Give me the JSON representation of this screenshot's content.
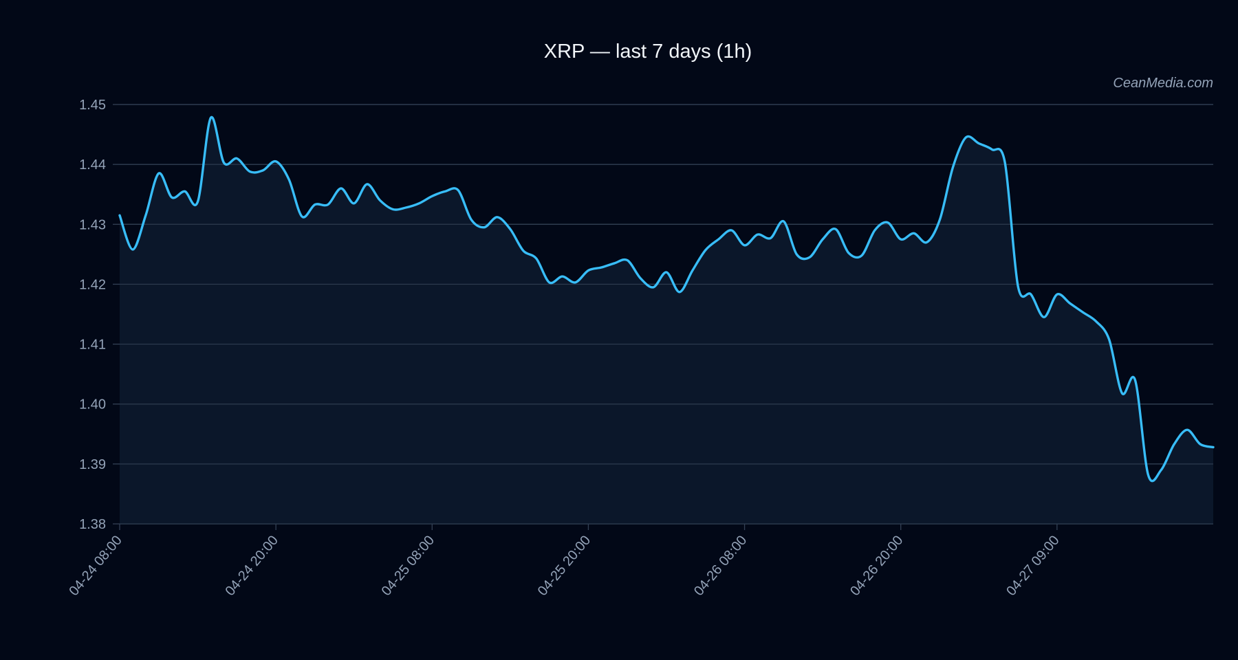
{
  "chart_data": {
    "type": "area",
    "title": "XRP — last 7 days (1h)",
    "watermark": "CeanMedia.com",
    "xlabel": "",
    "ylabel": "",
    "ylim": [
      1.38,
      1.45
    ],
    "yticks": [
      "1.38",
      "1.39",
      "1.40",
      "1.41",
      "1.42",
      "1.43",
      "1.44",
      "1.45"
    ],
    "xticks": [
      {
        "label": "04-24 08:00",
        "index": 0
      },
      {
        "label": "04-24 20:00",
        "index": 12
      },
      {
        "label": "04-25 08:00",
        "index": 24
      },
      {
        "label": "04-25 20:00",
        "index": 36
      },
      {
        "label": "04-26 08:00",
        "index": 48
      },
      {
        "label": "04-26 20:00",
        "index": 60
      },
      {
        "label": "04-27 09:00",
        "index": 72
      }
    ],
    "grid": true,
    "colors": {
      "background": "#020817",
      "line": "#38bdf8",
      "fill": "#0c1a2c",
      "grid": "#334155"
    },
    "series": [
      {
        "values": [
          1.4315,
          1.4258,
          1.4315,
          1.4385,
          1.4345,
          1.4355,
          1.4338,
          1.4478,
          1.4403,
          1.441,
          1.4388,
          1.439,
          1.4405,
          1.4375,
          1.4313,
          1.4333,
          1.4333,
          1.436,
          1.4335,
          1.4367,
          1.434,
          1.4325,
          1.4328,
          1.4335,
          1.4347,
          1.4355,
          1.4357,
          1.4308,
          1.4295,
          1.4312,
          1.4292,
          1.4256,
          1.4243,
          1.4203,
          1.4213,
          1.4203,
          1.4223,
          1.4228,
          1.4235,
          1.424,
          1.421,
          1.4195,
          1.422,
          1.4187,
          1.4223,
          1.4257,
          1.4275,
          1.429,
          1.4265,
          1.4283,
          1.4277,
          1.4305,
          1.425,
          1.4245,
          1.4275,
          1.4292,
          1.4252,
          1.4248,
          1.429,
          1.4303,
          1.4275,
          1.4285,
          1.427,
          1.4308,
          1.4395,
          1.4445,
          1.4435,
          1.4425,
          1.4403,
          1.4197,
          1.4183,
          1.4145,
          1.4183,
          1.4168,
          1.4153,
          1.4138,
          1.4108,
          1.4018,
          1.404,
          1.3882,
          1.389,
          1.3933,
          1.3957,
          1.3933,
          1.3928
        ]
      }
    ]
  }
}
